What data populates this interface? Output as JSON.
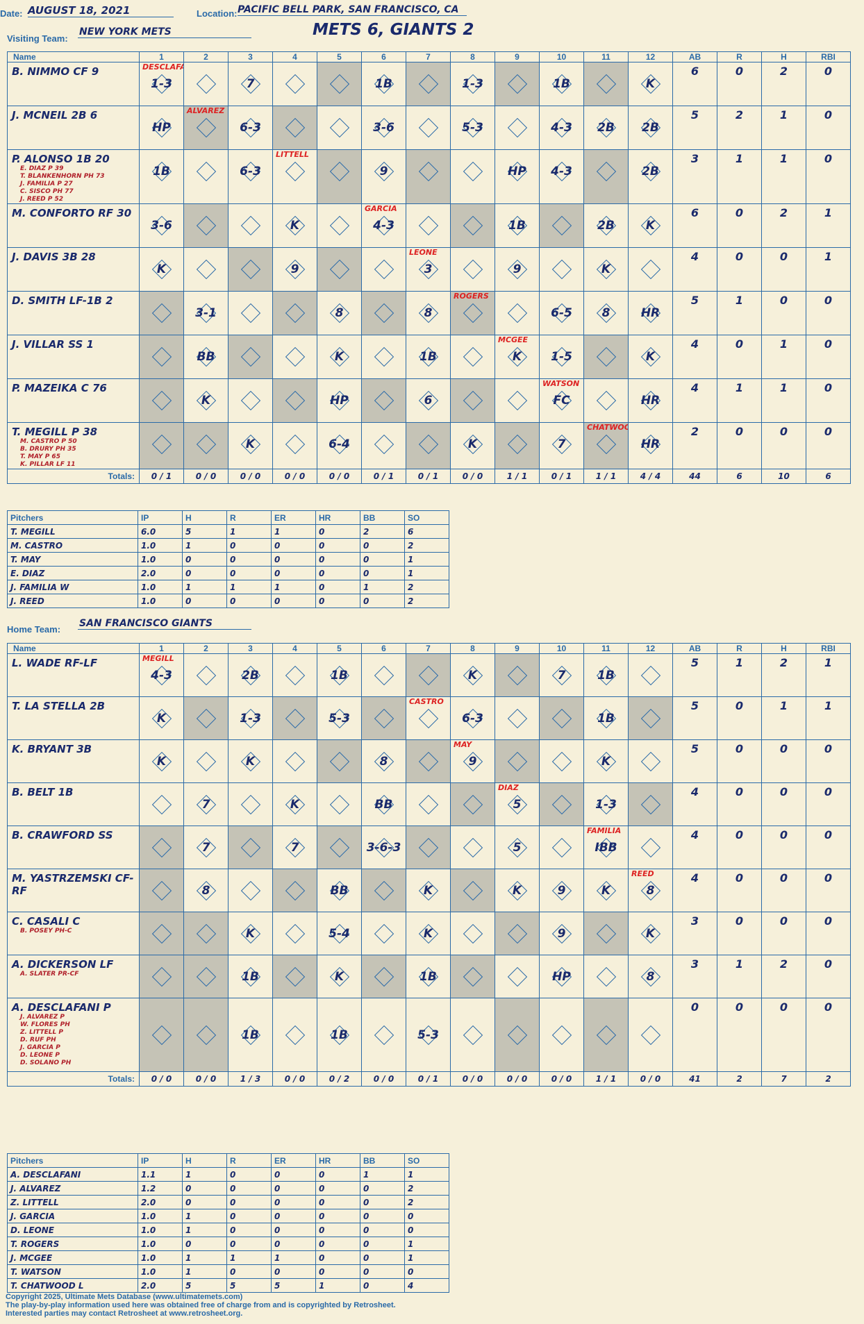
{
  "header": {
    "date_label": "Date:",
    "date": "AUGUST 18, 2021",
    "location_label": "Location:",
    "location": "PACIFIC BELL PARK, SAN FRANCISCO, CA",
    "visiting_label": "Visiting Team:",
    "visiting_team": "NEW YORK METS",
    "result": "METS 6, GIANTS 2",
    "home_label": "Home Team:",
    "home_team": "SAN FRANCISCO GIANTS"
  },
  "columns": {
    "name": "Name",
    "innings": [
      "1",
      "2",
      "3",
      "4",
      "5",
      "6",
      "7",
      "8",
      "9",
      "10",
      "11",
      "12"
    ],
    "stats": [
      "AB",
      "R",
      "H",
      "RBI"
    ],
    "totals": "Totals:"
  },
  "visitors": {
    "batters": [
      {
        "name": "B. NIMMO CF 9",
        "subs": [],
        "stats": [
          "6",
          "0",
          "2",
          "0"
        ],
        "cells": [
          "1-3",
          "",
          "7",
          "",
          "",
          "1B",
          "",
          "1-3",
          "",
          "1B",
          "",
          "K"
        ]
      },
      {
        "name": "J. MCNEIL 2B 6",
        "subs": [],
        "stats": [
          "5",
          "2",
          "1",
          "0"
        ],
        "cells": [
          "HP",
          "",
          "6-3",
          "",
          "",
          "3-6",
          "",
          "5-3",
          "",
          "4-3",
          "2B",
          "2B"
        ]
      },
      {
        "name": "P. ALONSO 1B 20",
        "subs": [
          "E. DIAZ P 39",
          "T. BLANKENHORN PH 73",
          "J. FAMILIA P 27",
          "C. SISCO PH 77",
          "J. REED P 52"
        ],
        "stats": [
          "3",
          "1",
          "1",
          "0"
        ],
        "cells": [
          "1B",
          "",
          "6-3",
          "",
          "",
          "9",
          "",
          "",
          "HP",
          "4-3",
          "",
          "2B"
        ]
      },
      {
        "name": "M. CONFORTO RF 30",
        "subs": [],
        "stats": [
          "6",
          "0",
          "2",
          "1"
        ],
        "cells": [
          "3-6",
          "",
          "",
          "K",
          "",
          "4-3",
          "",
          "",
          "1B",
          "",
          "2B",
          "K"
        ]
      },
      {
        "name": "J. DAVIS 3B 28",
        "subs": [],
        "stats": [
          "4",
          "0",
          "0",
          "1"
        ],
        "cells": [
          "K",
          "",
          "",
          "9",
          "",
          "",
          "3",
          "",
          "9",
          "",
          "K",
          ""
        ]
      },
      {
        "name": "D. SMITH LF-1B 2",
        "subs": [],
        "stats": [
          "5",
          "1",
          "0",
          "0"
        ],
        "cells": [
          "",
          "3-1",
          "",
          "",
          "8",
          "",
          "8",
          "",
          "",
          "6-5",
          "8",
          "HR"
        ]
      },
      {
        "name": "J. VILLAR SS 1",
        "subs": [],
        "stats": [
          "4",
          "0",
          "1",
          "0"
        ],
        "cells": [
          "",
          "BB",
          "",
          "",
          "K",
          "",
          "1B",
          "",
          "K",
          "1-5",
          "",
          "K"
        ]
      },
      {
        "name": "P. MAZEIKA C 76",
        "subs": [],
        "stats": [
          "4",
          "1",
          "1",
          "0"
        ],
        "cells": [
          "",
          "K",
          "",
          "",
          "HP",
          "",
          "6",
          "",
          "",
          "FC",
          "",
          "HR"
        ]
      },
      {
        "name": "T. MEGILL P 38",
        "subs": [
          "M. CASTRO P 50",
          "B. DRURY PH 35",
          "T. MAY P 65",
          "K. PILLAR LF 11"
        ],
        "stats": [
          "2",
          "0",
          "0",
          "0"
        ],
        "cells": [
          "",
          "",
          "K",
          "",
          "6-4",
          "",
          "",
          "K",
          "",
          "7",
          "",
          "HR"
        ]
      }
    ],
    "pitcher_notes": {
      "1": "DESCLAFANI",
      "6": "GARCIA",
      "11": "CHATWOOD",
      "4": "LITTELL",
      "9": "MCGEE",
      "7": "LEONE",
      "10": "WATSON",
      "2": "ALVAREZ",
      "8": "ROGERS"
    },
    "totals": [
      "0 / 1",
      "0 / 0",
      "0 / 0",
      "0 / 0",
      "0 / 0",
      "0 / 1",
      "0 / 1",
      "0 / 0",
      "1 / 1",
      "0 / 1",
      "1 / 1",
      "4 / 4"
    ],
    "total_stats": [
      "44",
      "6",
      "10",
      "6"
    ],
    "pitchers_header": [
      "Pitchers",
      "IP",
      "H",
      "R",
      "ER",
      "HR",
      "BB",
      "SO"
    ],
    "pitchers": [
      [
        "T. MEGILL",
        "6.0",
        "5",
        "1",
        "1",
        "0",
        "2",
        "6"
      ],
      [
        "M. CASTRO",
        "1.0",
        "1",
        "0",
        "0",
        "0",
        "0",
        "2"
      ],
      [
        "T. MAY",
        "1.0",
        "0",
        "0",
        "0",
        "0",
        "0",
        "1"
      ],
      [
        "E. DIAZ",
        "2.0",
        "0",
        "0",
        "0",
        "0",
        "0",
        "1"
      ],
      [
        "J. FAMILIA  W",
        "1.0",
        "1",
        "1",
        "1",
        "0",
        "1",
        "2"
      ],
      [
        "J. REED",
        "1.0",
        "0",
        "0",
        "0",
        "0",
        "0",
        "2"
      ]
    ]
  },
  "home": {
    "batters": [
      {
        "name": "L. WADE RF-LF",
        "subs": [],
        "stats": [
          "5",
          "1",
          "2",
          "1"
        ],
        "cells": [
          "4-3",
          "",
          "2B",
          "",
          "1B",
          "",
          "",
          "K",
          "",
          "7",
          "1B",
          ""
        ]
      },
      {
        "name": "T. LA STELLA 2B",
        "subs": [],
        "stats": [
          "5",
          "0",
          "1",
          "1"
        ],
        "cells": [
          "K",
          "",
          "1-3",
          "",
          "5-3",
          "",
          "",
          "6-3",
          "",
          "",
          "1B",
          ""
        ]
      },
      {
        "name": "K. BRYANT 3B",
        "subs": [],
        "stats": [
          "5",
          "0",
          "0",
          "0"
        ],
        "cells": [
          "K",
          "",
          "K",
          "",
          "",
          "8",
          "",
          "9",
          "",
          "",
          "K",
          ""
        ]
      },
      {
        "name": "B. BELT 1B",
        "subs": [],
        "stats": [
          "4",
          "0",
          "0",
          "0"
        ],
        "cells": [
          "",
          "7",
          "",
          "K",
          "",
          "BB",
          "",
          "",
          "5",
          "",
          "1-3",
          ""
        ]
      },
      {
        "name": "B. CRAWFORD SS",
        "subs": [],
        "stats": [
          "4",
          "0",
          "0",
          "0"
        ],
        "cells": [
          "",
          "7",
          "",
          "7",
          "",
          "3-6-3",
          "",
          "",
          "5",
          "",
          "IBB",
          ""
        ]
      },
      {
        "name": "M. YASTRZEMSKI CF-RF",
        "subs": [],
        "stats": [
          "4",
          "0",
          "0",
          "0"
        ],
        "cells": [
          "",
          "8",
          "",
          "",
          "BB",
          "",
          "K",
          "",
          "K",
          "9",
          "K",
          "8"
        ]
      },
      {
        "name": "C. CASALI C",
        "subs": [
          "B. POSEY PH-C"
        ],
        "stats": [
          "3",
          "0",
          "0",
          "0"
        ],
        "cells": [
          "",
          "",
          "K",
          "",
          "5-4",
          "",
          "K",
          "",
          "",
          "9",
          "",
          "K"
        ]
      },
      {
        "name": "A. DICKERSON LF",
        "subs": [
          "A. SLATER PR-CF"
        ],
        "stats": [
          "3",
          "1",
          "2",
          "0"
        ],
        "cells": [
          "",
          "",
          "1B",
          "",
          "K",
          "",
          "1B",
          "",
          "",
          "HP",
          "",
          "8"
        ]
      },
      {
        "name": "A. DESCLAFANI P",
        "subs": [
          "J. ALVAREZ P",
          "W. FLORES PH",
          "Z. LITTELL P",
          "D. RUF PH",
          "J. GARCIA P",
          "D. LEONE P",
          "D. SOLANO PH"
        ],
        "stats": [
          "0",
          "0",
          "0",
          "0"
        ],
        "cells": [
          "",
          "",
          "1B",
          "",
          "1B",
          "",
          "5-3",
          "",
          "",
          "",
          "",
          ""
        ]
      }
    ],
    "pitcher_notes": {
      "1": "MEGILL",
      "8": "MAY",
      "11": "FAMILIA",
      "9": "DIAZ",
      "7": "CASTRO",
      "12": "REED"
    },
    "totals": [
      "0 / 0",
      "0 / 0",
      "1 / 3",
      "0 / 0",
      "0 / 2",
      "0 / 0",
      "0 / 1",
      "0 / 0",
      "0 / 0",
      "0 / 0",
      "1 / 1",
      "0 / 0"
    ],
    "total_stats": [
      "41",
      "2",
      "7",
      "2"
    ],
    "pitchers_header": [
      "Pitchers",
      "IP",
      "H",
      "R",
      "ER",
      "HR",
      "BB",
      "SO"
    ],
    "pitchers": [
      [
        "A. DESCLAFANI",
        "1.1",
        "1",
        "0",
        "0",
        "0",
        "1",
        "1"
      ],
      [
        "J. ALVAREZ",
        "1.2",
        "0",
        "0",
        "0",
        "0",
        "0",
        "2"
      ],
      [
        "Z. LITTELL",
        "2.0",
        "0",
        "0",
        "0",
        "0",
        "0",
        "2"
      ],
      [
        "J. GARCIA",
        "1.0",
        "1",
        "0",
        "0",
        "0",
        "0",
        "0"
      ],
      [
        "D. LEONE",
        "1.0",
        "1",
        "0",
        "0",
        "0",
        "0",
        "0"
      ],
      [
        "T. ROGERS",
        "1.0",
        "0",
        "0",
        "0",
        "0",
        "0",
        "1"
      ],
      [
        "J. MCGEE",
        "1.0",
        "1",
        "1",
        "1",
        "0",
        "0",
        "1"
      ],
      [
        "T. WATSON",
        "1.0",
        "1",
        "0",
        "0",
        "0",
        "0",
        "0"
      ],
      [
        "T. CHATWOOD  L",
        "2.0",
        "5",
        "5",
        "5",
        "1",
        "0",
        "4"
      ]
    ]
  },
  "footer": {
    "line1": "Copyright 2025, Ultimate Mets Database (www.ultimatemets.com)",
    "line2": "The play-by-play information used here was obtained free of charge from and is copyrighted by Retrosheet.",
    "line3": "Interested parties may contact Retrosheet at www.retrosheet.org."
  },
  "watermark": "Ultimate Mets Database",
  "shading": {
    "visitors": [
      [
        0,
        0,
        0,
        0,
        0,
        0,
        0,
        0,
        0,
        0,
        0,
        0
      ]
    ],
    "note": "shade pattern derived by script"
  }
}
